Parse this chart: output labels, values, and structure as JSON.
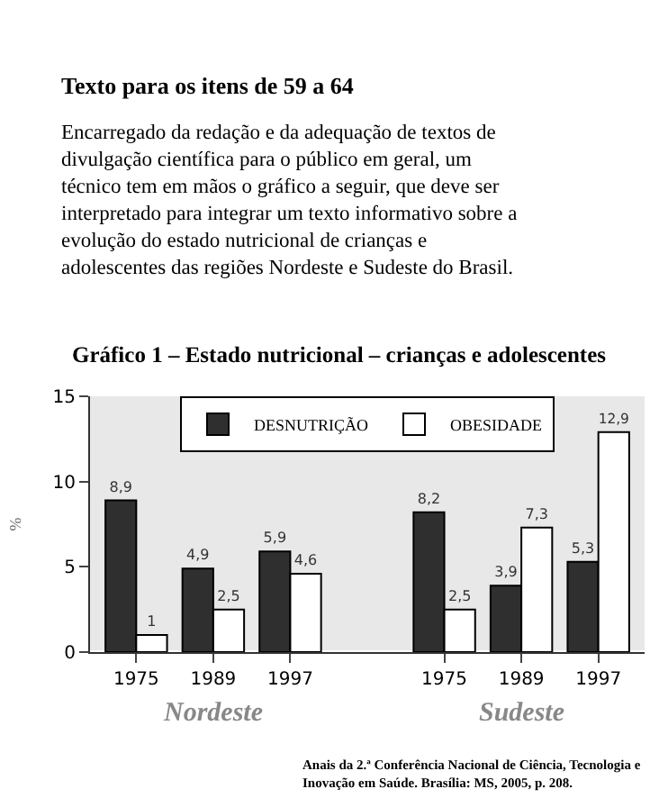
{
  "chart_data": {
    "type": "bar",
    "title": "Gráfico 1 – Estado nutricional – crianças e adolescentes",
    "categories": [
      "1975",
      "1989",
      "1997",
      null,
      "1975",
      "1989",
      "1997"
    ],
    "series": [
      {
        "name": "DESNUTRIÇÃO",
        "color": "#2f2f2f",
        "values": [
          8.9,
          4.9,
          5.9,
          null,
          8.2,
          3.9,
          5.3
        ],
        "value_labels": [
          "8,9",
          "4,9",
          "5,9",
          null,
          "8,2",
          "3,9",
          "5,3"
        ]
      },
      {
        "name": "OBESIDADE",
        "color": "#ffffff",
        "values": [
          1,
          2.5,
          4.6,
          null,
          2.5,
          7.3,
          12.9
        ],
        "value_labels": [
          "1",
          "2,5",
          "4,6",
          null,
          "2,5",
          "7,3",
          "12,9"
        ]
      }
    ],
    "ylabel": "%",
    "ylim": [
      0,
      15
    ],
    "yticks": [
      0,
      5,
      10,
      15
    ],
    "grid": false,
    "legend": "top",
    "annotations": [
      "Texto para os itens de 59 a 64",
      "Encarregado da redação e da adequação de textos de divulgação científica para o público em geral, um técnico tem em mãos o gráfico a seguir, que deve ser interpretado para integrar um texto informativo sobre a evolução do estado nutricional de crianças e adolescentes das regiões Nordeste e Sudeste do Brasil.",
      "Nordeste",
      "Sudeste",
      "Anais da 2.ª Conferência Nacional de Ciência, Tecnologia e Inovação em Saúde. Brasília: MS, 2005, p. 208."
    ]
  }
}
